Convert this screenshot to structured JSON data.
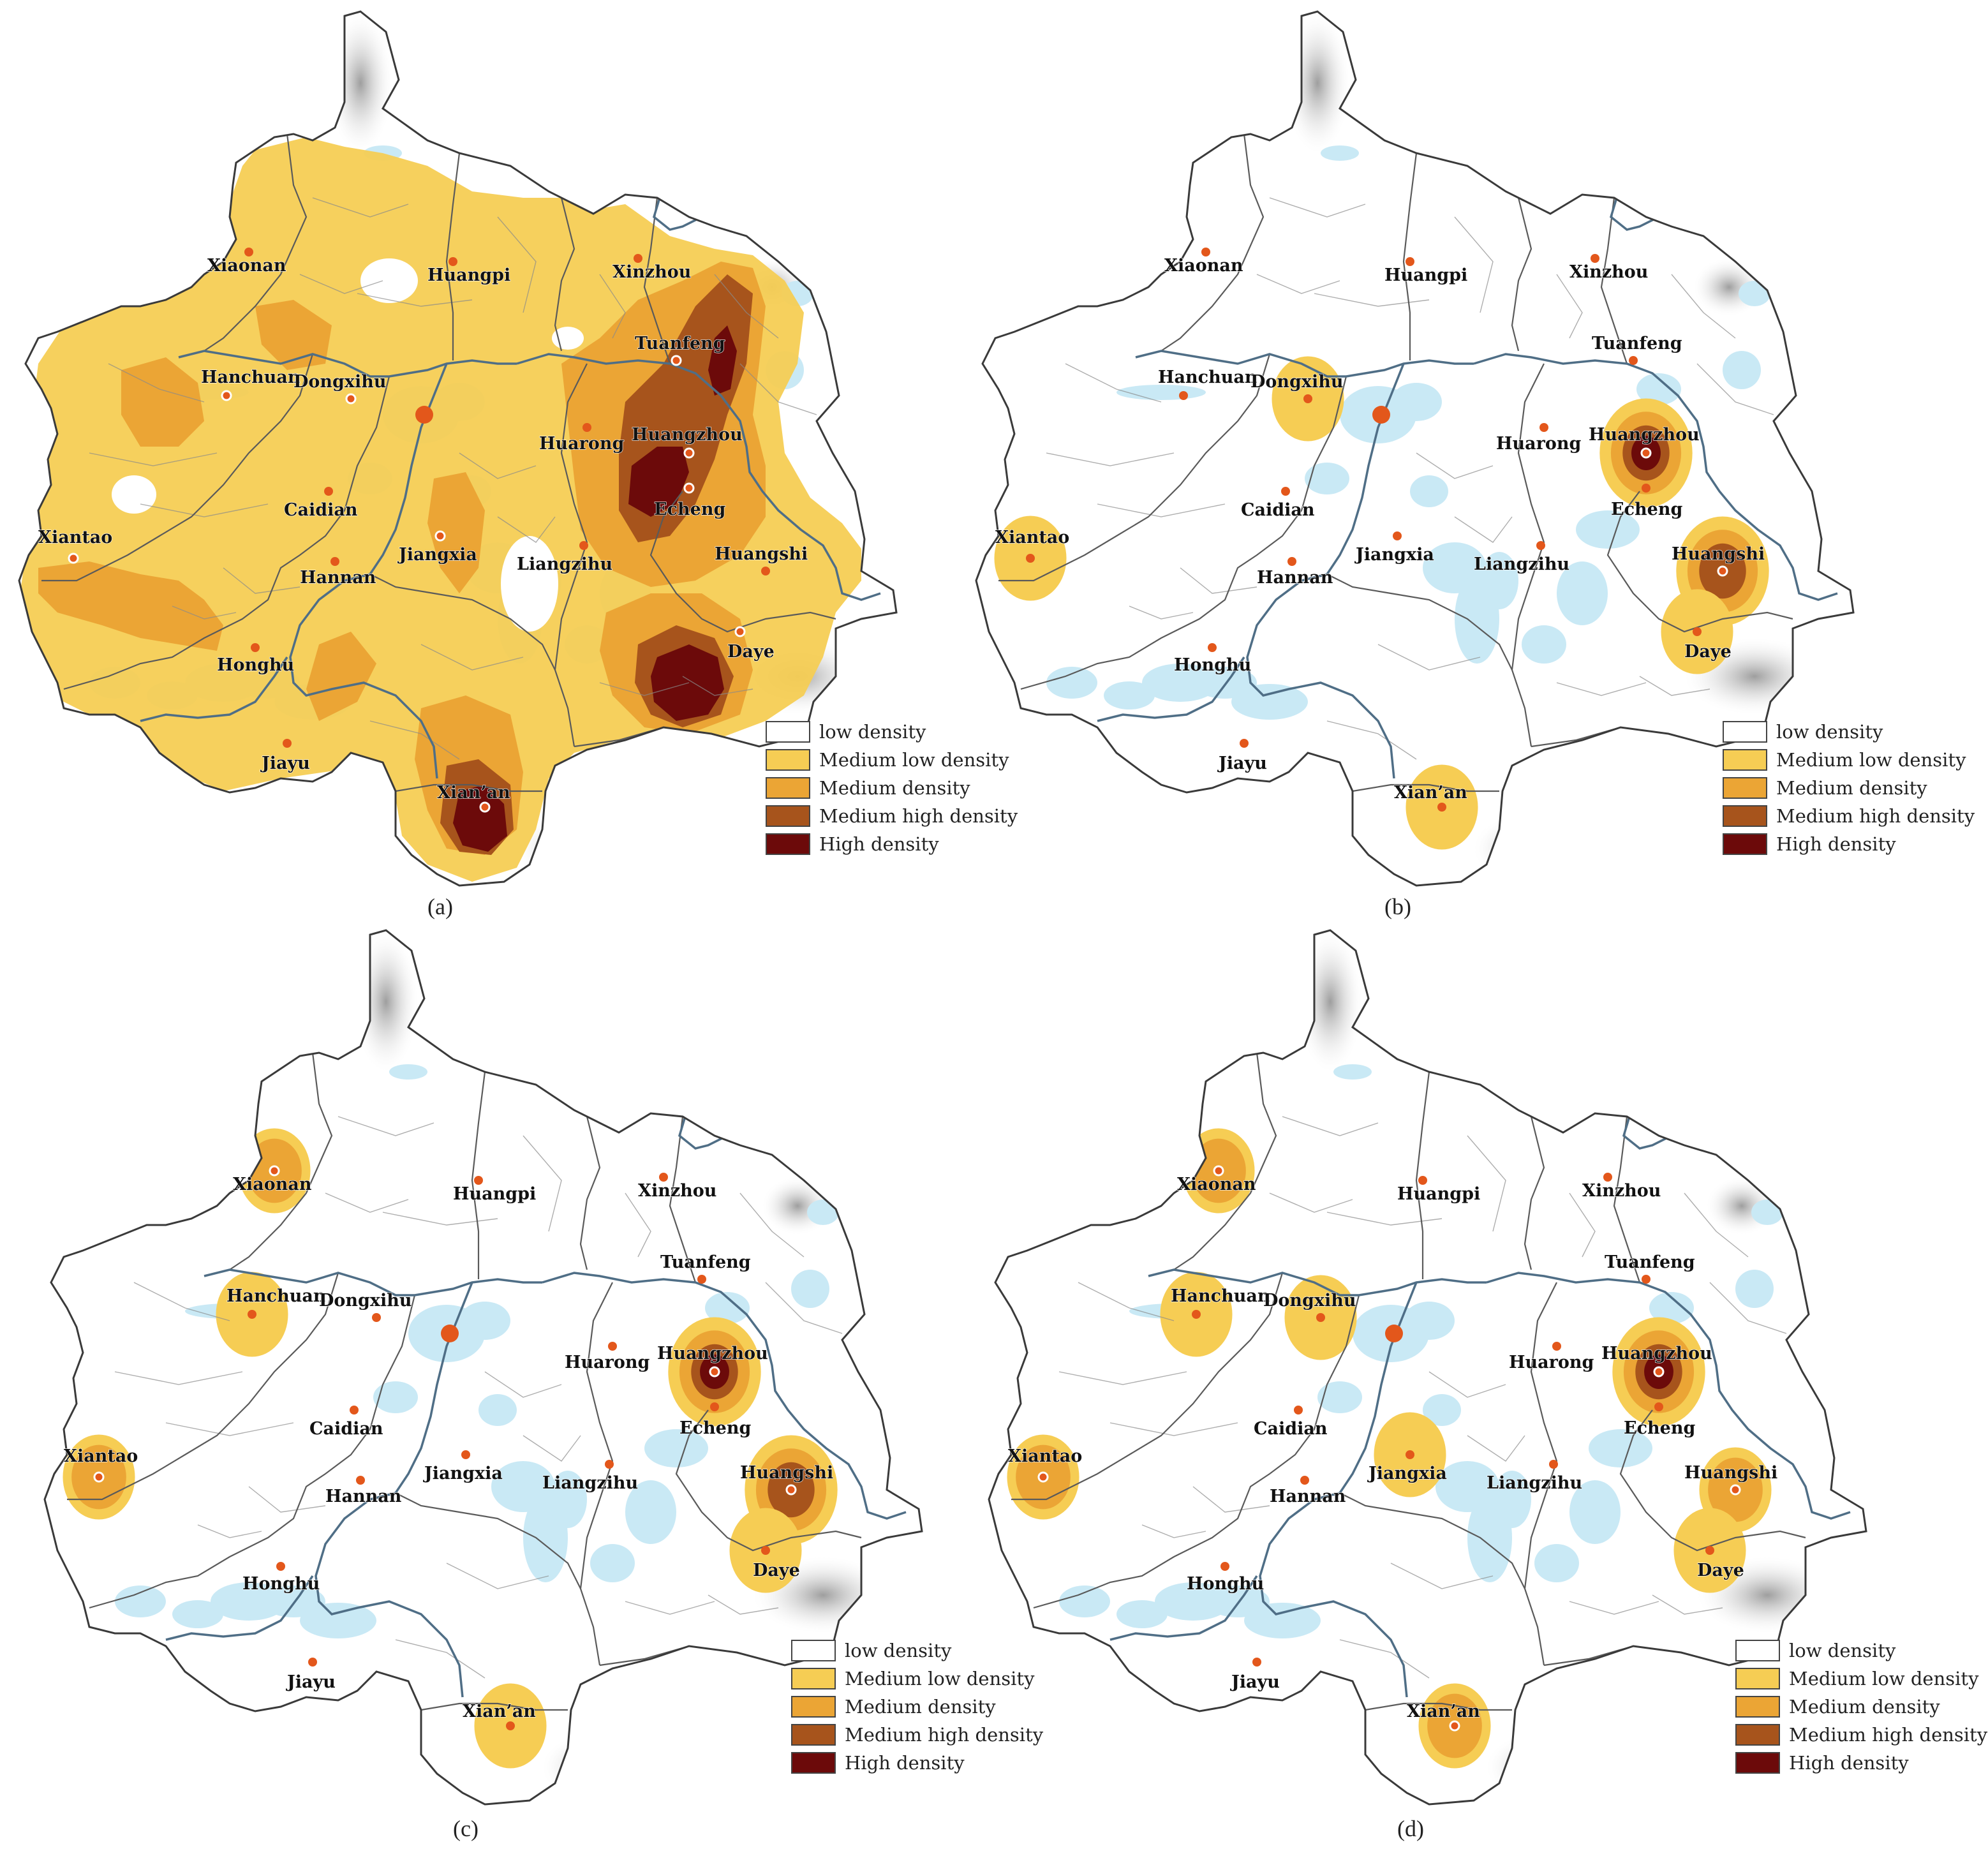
{
  "legend": {
    "items": [
      {
        "label": "low density",
        "color": "#ffffff"
      },
      {
        "label": "Medium low density",
        "color": "#f6cd54"
      },
      {
        "label": "Medium density",
        "color": "#eba535"
      },
      {
        "label": "Medium high density",
        "color": "#a7541c"
      },
      {
        "label": "High density",
        "color": "#6c0a0a"
      }
    ]
  },
  "palette": {
    "water": "#c9e9f5",
    "boundary": "#3a3a3a",
    "river": "#4f6e86",
    "city_dot": "#e3571b",
    "terrain": "#bdbdbd"
  },
  "cities": [
    {
      "id": "xiaonan",
      "label": "Xiaonan"
    },
    {
      "id": "huangpi",
      "label": "Huangpi"
    },
    {
      "id": "xinzhou",
      "label": "Xinzhou"
    },
    {
      "id": "tuanfeng",
      "label": "Tuanfeng"
    },
    {
      "id": "hanchuan",
      "label": "Hanchuan"
    },
    {
      "id": "dongxihu",
      "label": "Dongxihu"
    },
    {
      "id": "huarong",
      "label": "Huarong"
    },
    {
      "id": "huangzhou",
      "label": "Huangzhou"
    },
    {
      "id": "caidian",
      "label": "Caidian"
    },
    {
      "id": "echeng",
      "label": "Echeng"
    },
    {
      "id": "xiantao",
      "label": "Xiantao"
    },
    {
      "id": "jiangxia",
      "label": "Jiangxia"
    },
    {
      "id": "liangzihu",
      "label": "Liangzihu"
    },
    {
      "id": "huangshi",
      "label": "Huangshi"
    },
    {
      "id": "hannan",
      "label": "Hannan"
    },
    {
      "id": "honghu",
      "label": "Honghu"
    },
    {
      "id": "daye",
      "label": "Daye"
    },
    {
      "id": "jiayu",
      "label": "Jiayu"
    },
    {
      "id": "xianan",
      "label": "Xian’an"
    }
  ],
  "panels": [
    {
      "id": "a",
      "caption": "(a)",
      "hotspots": [
        {
          "city": "jiangxia",
          "level": 2
        },
        {
          "city": "huangzhou",
          "level": 4
        },
        {
          "city": "tuanfeng",
          "level": 3
        },
        {
          "city": "echeng",
          "level": 4
        },
        {
          "city": "daye",
          "level": 4
        },
        {
          "city": "xianan",
          "level": 4
        },
        {
          "city": "hanchuan",
          "level": 2
        },
        {
          "city": "xiantao",
          "level": 2
        },
        {
          "city": "dongxihu",
          "level": 2
        }
      ]
    },
    {
      "id": "b",
      "caption": "(b)",
      "hotspots": [
        {
          "city": "huangzhou",
          "level": 4
        },
        {
          "city": "huangshi",
          "level": 3
        },
        {
          "city": "daye",
          "level": 1
        },
        {
          "city": "dongxihu",
          "level": 1
        },
        {
          "city": "xianan",
          "level": 1
        },
        {
          "city": "xiantao",
          "level": 1
        }
      ]
    },
    {
      "id": "c",
      "caption": "(c)",
      "hotspots": [
        {
          "city": "xiaonan",
          "level": 2
        },
        {
          "city": "hanchuan",
          "level": 1
        },
        {
          "city": "xiantao",
          "level": 2
        },
        {
          "city": "huangzhou",
          "level": 4
        },
        {
          "city": "huangshi",
          "level": 3
        },
        {
          "city": "daye",
          "level": 1
        },
        {
          "city": "xianan",
          "level": 1
        }
      ]
    },
    {
      "id": "d",
      "caption": "(d)",
      "hotspots": [
        {
          "city": "xiaonan",
          "level": 2
        },
        {
          "city": "hanchuan",
          "level": 1
        },
        {
          "city": "xiantao",
          "level": 2
        },
        {
          "city": "dongxihu",
          "level": 1
        },
        {
          "city": "jiangxia",
          "level": 1
        },
        {
          "city": "huangzhou",
          "level": 4
        },
        {
          "city": "huangshi",
          "level": 2
        },
        {
          "city": "daye",
          "level": 1
        },
        {
          "city": "xianan",
          "level": 2
        }
      ]
    }
  ]
}
